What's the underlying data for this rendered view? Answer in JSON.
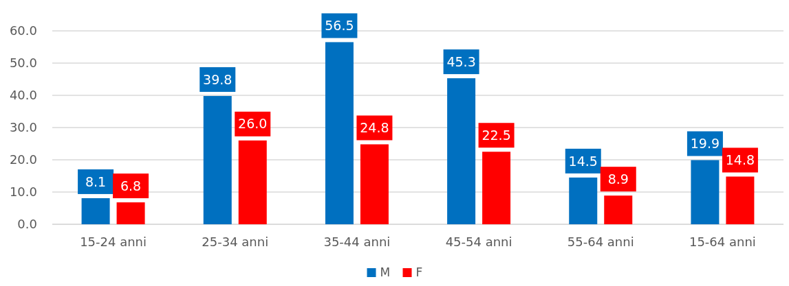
{
  "chart_data": {
    "type": "bar",
    "categories": [
      "15-24 anni",
      "25-34 anni",
      "35-44 anni",
      "45-54 anni",
      "55-64 anni",
      "15-64 anni"
    ],
    "series": [
      {
        "name": "M",
        "color": "#0070c0",
        "values": [
          8.1,
          39.8,
          56.5,
          45.3,
          14.5,
          19.9
        ],
        "value_labels": [
          "8.1",
          "39.8",
          "56.5",
          "45.3",
          "14.5",
          "19.9"
        ]
      },
      {
        "name": "F",
        "color": "#ff0000",
        "values": [
          6.8,
          26.0,
          24.8,
          22.5,
          8.9,
          14.8
        ],
        "value_labels": [
          "6.8",
          "26.0",
          "24.8",
          "22.5",
          "8.9",
          "14.8"
        ]
      }
    ],
    "ylim": [
      0,
      60
    ],
    "yticks": [
      {
        "value": 0,
        "label": "0.0"
      },
      {
        "value": 10,
        "label": "10.0"
      },
      {
        "value": 20,
        "label": "20.0"
      },
      {
        "value": 30,
        "label": "30.0"
      },
      {
        "value": 40,
        "label": "40.0"
      },
      {
        "value": 50,
        "label": "50.0"
      },
      {
        "value": 60,
        "label": "60.0"
      }
    ],
    "grid": "y",
    "legend": "bottom"
  }
}
